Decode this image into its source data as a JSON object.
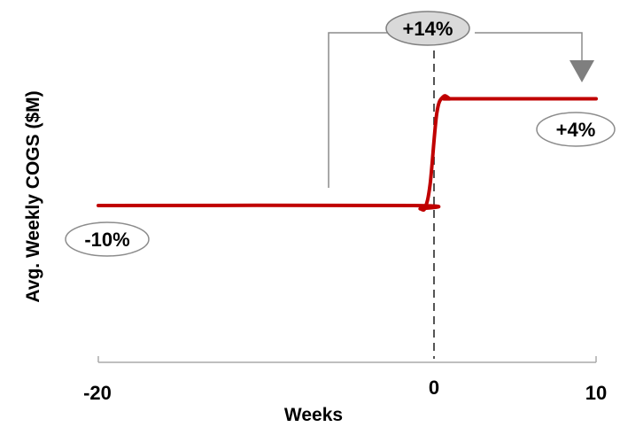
{
  "chart_data": {
    "type": "line",
    "xlabel": "Weeks",
    "ylabel": "Avg. Weekly COGS ($M)",
    "x_ticks": [
      "-20",
      "0",
      "10"
    ],
    "xlim": [
      -20,
      10
    ],
    "series": [
      {
        "x": [
          -20,
          -1,
          -0.6,
          -0.3,
          0,
          0.4,
          0.8,
          1.2,
          1.5,
          10
        ],
        "y": [
          0.0,
          0.0,
          -0.03,
          -0.02,
          0.2,
          0.85,
          1.0,
          0.98,
          0.98,
          0.98
        ],
        "color": "#C00000"
      }
    ],
    "reference_line": {
      "x": 0,
      "style": "dashed",
      "color": "#555555"
    },
    "annotations": [
      {
        "label": "+14%",
        "style": "grey-filled-oval",
        "note": "bracket arrow from before-change level to after-change level"
      },
      {
        "label": "-10%",
        "style": "outlined-oval",
        "attached_to": "series start"
      },
      {
        "label": "+4%",
        "style": "outlined-oval",
        "attached_to": "series end"
      }
    ]
  }
}
